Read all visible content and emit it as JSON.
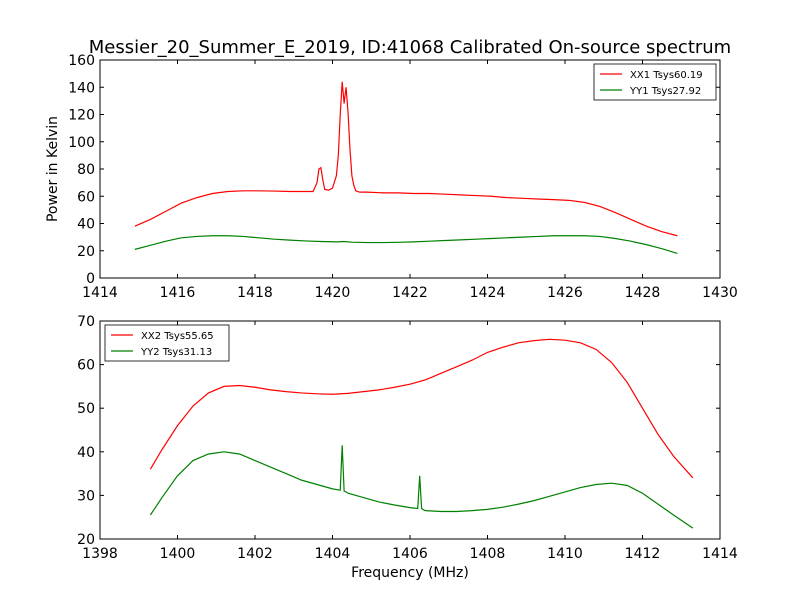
{
  "title": "Messier_20_Summer_E_2019, ID:41068 Calibrated On-source spectrum",
  "chart_data": [
    {
      "type": "line",
      "xlabel": "",
      "ylabel": "Power in Kelvin",
      "xlim": [
        1414,
        1430
      ],
      "ylim": [
        0,
        160
      ],
      "xticks": [
        1414,
        1416,
        1418,
        1420,
        1422,
        1424,
        1426,
        1428,
        1430
      ],
      "yticks": [
        0,
        20,
        40,
        60,
        80,
        100,
        120,
        140,
        160
      ],
      "legend_position": "top-right",
      "grid": false,
      "series": [
        {
          "name": "XX1 Tsys60.19",
          "color": "#ff0000",
          "x": [
            1414.9,
            1415.3,
            1415.7,
            1416.1,
            1416.5,
            1416.9,
            1417.3,
            1417.7,
            1418.1,
            1418.5,
            1418.9,
            1419.3,
            1419.5,
            1419.6,
            1419.65,
            1419.7,
            1419.75,
            1419.8,
            1419.9,
            1420.0,
            1420.1,
            1420.15,
            1420.2,
            1420.25,
            1420.3,
            1420.35,
            1420.4,
            1420.45,
            1420.5,
            1420.55,
            1420.6,
            1420.7,
            1420.9,
            1421.3,
            1421.7,
            1422.1,
            1422.5,
            1422.9,
            1423.3,
            1423.7,
            1424.1,
            1424.5,
            1424.9,
            1425.3,
            1425.7,
            1426.1,
            1426.5,
            1426.9,
            1427.3,
            1427.7,
            1428.1,
            1428.5,
            1428.9
          ],
          "y": [
            38,
            43,
            49,
            55,
            59,
            62,
            63.5,
            64,
            64,
            63.8,
            63.5,
            63.5,
            63.5,
            70,
            80,
            81,
            72,
            65,
            64.5,
            66,
            75,
            90,
            120,
            144,
            128,
            140,
            122,
            95,
            75,
            68,
            64,
            63,
            63,
            62.5,
            62.5,
            62,
            62,
            61.5,
            61,
            60.5,
            60,
            59,
            58.5,
            58,
            57.5,
            57,
            55.5,
            52.5,
            48,
            43,
            38,
            34,
            31
          ]
        },
        {
          "name": "YY1 Tsys27.92",
          "color": "#008000",
          "x": [
            1414.9,
            1415.3,
            1415.7,
            1416.1,
            1416.5,
            1416.9,
            1417.3,
            1417.7,
            1418.1,
            1418.5,
            1418.9,
            1419.3,
            1419.7,
            1420.1,
            1420.3,
            1420.5,
            1420.9,
            1421.3,
            1421.7,
            1422.1,
            1422.5,
            1422.9,
            1423.3,
            1423.7,
            1424.1,
            1424.5,
            1424.9,
            1425.3,
            1425.7,
            1426.1,
            1426.5,
            1426.9,
            1427.3,
            1427.7,
            1428.1,
            1428.5,
            1428.9
          ],
          "y": [
            21,
            24,
            27,
            29.5,
            30.5,
            31,
            31,
            30.5,
            29.5,
            28.5,
            27.8,
            27.2,
            26.8,
            26.5,
            26.8,
            26.3,
            26,
            26,
            26.2,
            26.5,
            27,
            27.5,
            28,
            28.5,
            29,
            29.5,
            30,
            30.5,
            31,
            31,
            31,
            30.5,
            29,
            27,
            24.5,
            21.5,
            18
          ]
        }
      ]
    },
    {
      "type": "line",
      "xlabel": "Frequency (MHz)",
      "ylabel": "",
      "xlim": [
        1398,
        1414
      ],
      "ylim": [
        20,
        70
      ],
      "xticks": [
        1398,
        1400,
        1402,
        1404,
        1406,
        1408,
        1410,
        1412,
        1414
      ],
      "yticks": [
        20,
        30,
        40,
        50,
        60,
        70
      ],
      "legend_position": "top-left",
      "grid": false,
      "series": [
        {
          "name": "XX2 Tsys55.65",
          "color": "#ff0000",
          "x": [
            1399.3,
            1399.6,
            1400,
            1400.4,
            1400.8,
            1401.2,
            1401.6,
            1402,
            1402.4,
            1402.8,
            1403.2,
            1403.6,
            1404,
            1404.4,
            1404.8,
            1405.2,
            1405.6,
            1406,
            1406.4,
            1406.8,
            1407.2,
            1407.6,
            1408,
            1408.4,
            1408.8,
            1409.2,
            1409.6,
            1410,
            1410.4,
            1410.8,
            1411.2,
            1411.6,
            1412,
            1412.4,
            1412.8,
            1413.3
          ],
          "y": [
            36,
            40.5,
            46,
            50.5,
            53.5,
            55,
            55.2,
            54.8,
            54.2,
            53.8,
            53.5,
            53.3,
            53.2,
            53.4,
            53.8,
            54.2,
            54.8,
            55.5,
            56.5,
            58,
            59.5,
            61,
            62.8,
            64,
            65,
            65.5,
            65.8,
            65.6,
            65,
            63.5,
            60.5,
            56,
            50,
            44,
            39,
            34
          ]
        },
        {
          "name": "YY2 Tsys31.13",
          "color": "#008000",
          "x": [
            1399.3,
            1399.6,
            1400,
            1400.4,
            1400.8,
            1401.2,
            1401.6,
            1402,
            1402.4,
            1402.8,
            1403.2,
            1403.6,
            1404,
            1404.2,
            1404.25,
            1404.3,
            1404.35,
            1404.4,
            1404.8,
            1405.2,
            1405.6,
            1406,
            1406.2,
            1406.25,
            1406.3,
            1406.35,
            1406.4,
            1406.8,
            1407.2,
            1407.6,
            1408,
            1408.4,
            1408.8,
            1409.2,
            1409.6,
            1410,
            1410.4,
            1410.8,
            1411.2,
            1411.6,
            1412,
            1412.4,
            1412.8,
            1413.3
          ],
          "y": [
            25.5,
            29.5,
            34.5,
            38,
            39.5,
            40,
            39.5,
            38,
            36.5,
            35,
            33.5,
            32.5,
            31.5,
            31.2,
            41.5,
            31,
            30.8,
            30.5,
            29.5,
            28.5,
            27.8,
            27.2,
            27,
            34.5,
            27,
            26.7,
            26.5,
            26.3,
            26.3,
            26.5,
            26.8,
            27.3,
            28,
            28.8,
            29.8,
            30.8,
            31.8,
            32.5,
            32.8,
            32.3,
            30.5,
            28,
            25.5,
            22.5
          ]
        }
      ]
    }
  ]
}
